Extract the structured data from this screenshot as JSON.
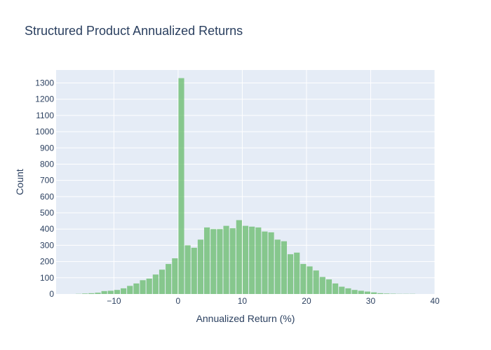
{
  "chart_data": {
    "type": "bar",
    "title": "Structured Product Annualized Returns",
    "xlabel": "Annualized Return (%)",
    "ylabel": "Count",
    "xlim": [
      -19,
      40
    ],
    "ylim": [
      0,
      1380
    ],
    "x_ticks": [
      -10,
      0,
      10,
      20,
      30,
      40
    ],
    "x_tick_labels": [
      "−10",
      "0",
      "10",
      "20",
      "30",
      "40"
    ],
    "y_ticks": [
      0,
      100,
      200,
      300,
      400,
      500,
      600,
      700,
      800,
      900,
      1000,
      1100,
      1200,
      1300
    ],
    "y_tick_labels": [
      "0",
      "100",
      "200",
      "300",
      "400",
      "500",
      "600",
      "700",
      "800",
      "900",
      "1000",
      "1100",
      "1200",
      "1300"
    ],
    "bin_width": 1,
    "bins_start": [
      -16,
      -15,
      -14,
      -13,
      -12,
      -11,
      -10,
      -9,
      -8,
      -7,
      -6,
      -5,
      -4,
      -3,
      -2,
      -1,
      0,
      1,
      2,
      3,
      4,
      5,
      6,
      7,
      8,
      9,
      10,
      11,
      12,
      13,
      14,
      15,
      16,
      17,
      18,
      19,
      20,
      21,
      22,
      23,
      24,
      25,
      26,
      27,
      28,
      29,
      30,
      31,
      32,
      33,
      34,
      35,
      36
    ],
    "counts": [
      1,
      3,
      5,
      8,
      18,
      20,
      25,
      35,
      50,
      65,
      85,
      95,
      120,
      150,
      185,
      220,
      1330,
      300,
      285,
      335,
      410,
      400,
      400,
      420,
      405,
      455,
      420,
      415,
      410,
      385,
      380,
      335,
      325,
      245,
      255,
      185,
      170,
      145,
      105,
      90,
      65,
      45,
      35,
      25,
      20,
      15,
      10,
      5,
      3,
      2,
      1,
      1,
      1
    ],
    "grid": true,
    "colors": {
      "bar": "#66bb6a",
      "bar_opacity": 0.75,
      "plot_bg": "#e5ecf6",
      "grid": "#ffffff",
      "text": "#2a3f5f"
    }
  }
}
